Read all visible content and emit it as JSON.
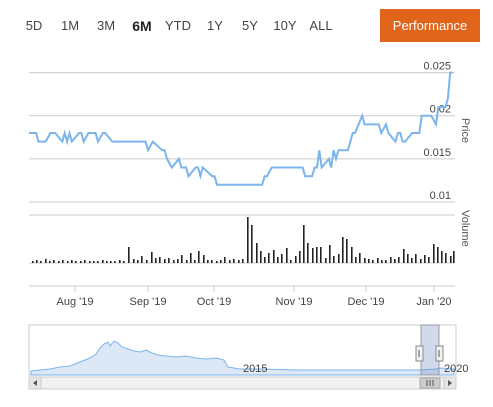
{
  "range_selector": {
    "buttons": [
      {
        "label": "5D",
        "active": false
      },
      {
        "label": "1M",
        "active": false
      },
      {
        "label": "3M",
        "active": false
      },
      {
        "label": "6M",
        "active": true
      },
      {
        "label": "YTD",
        "active": false
      },
      {
        "label": "1Y",
        "active": false
      },
      {
        "label": "5Y",
        "active": false
      },
      {
        "label": "10Y",
        "active": false
      },
      {
        "label": "ALL",
        "active": false
      }
    ]
  },
  "performance_label": "Performance",
  "colors": {
    "accent": "#e0641a",
    "line": "#7cb5ec",
    "volume": "#222222",
    "navigator_fill": "#dce8f5"
  },
  "chart_data": {
    "type": "line",
    "price_axis": {
      "label": "Price",
      "ticks": [
        "0.025",
        "0.02",
        "0.015",
        "0.01"
      ],
      "tick_values": [
        0.025,
        0.02,
        0.015,
        0.01
      ],
      "ylim": [
        0.0085,
        0.0275
      ]
    },
    "volume_axis": {
      "label": "Volume"
    },
    "x_ticks": [
      "Aug '19",
      "Sep '19",
      "Oct '19",
      "Nov '19",
      "Dec '19",
      "Jan '20"
    ],
    "series": [
      {
        "type": "line",
        "x": [
          "2019-07-15",
          "2019-07-18",
          "2019-07-19",
          "2019-07-22",
          "2019-07-24",
          "2019-07-26",
          "2019-07-29",
          "2019-07-30",
          "2019-07-31",
          "2019-08-01",
          "2019-08-02",
          "2019-08-05",
          "2019-08-06",
          "2019-08-07",
          "2019-08-09",
          "2019-08-12",
          "2019-08-13",
          "2019-08-15",
          "2019-08-16",
          "2019-08-19",
          "2019-08-20",
          "2019-08-22",
          "2019-08-26",
          "2019-08-29",
          "2019-09-02",
          "2019-09-03",
          "2019-09-05",
          "2019-09-09",
          "2019-09-10",
          "2019-09-11",
          "2019-09-13",
          "2019-09-16",
          "2019-09-17",
          "2019-09-19",
          "2019-09-20",
          "2019-09-23",
          "2019-09-24",
          "2019-09-25",
          "2019-09-26",
          "2019-09-30",
          "2019-10-01",
          "2019-10-02",
          "2019-10-03",
          "2019-10-07",
          "2019-10-10",
          "2019-10-15",
          "2019-10-18",
          "2019-10-21",
          "2019-10-22",
          "2019-10-23",
          "2019-10-25",
          "2019-10-28",
          "2019-10-29",
          "2019-11-01",
          "2019-11-04",
          "2019-11-05",
          "2019-11-06",
          "2019-11-07",
          "2019-11-08",
          "2019-11-11",
          "2019-11-12",
          "2019-11-13",
          "2019-11-14",
          "2019-11-15",
          "2019-11-18",
          "2019-11-19",
          "2019-11-20",
          "2019-11-21",
          "2019-11-22",
          "2019-11-25",
          "2019-11-26",
          "2019-11-27",
          "2019-11-28",
          "2019-11-29",
          "2019-12-02",
          "2019-12-03",
          "2019-12-05",
          "2019-12-09",
          "2019-12-10",
          "2019-12-12",
          "2019-12-13",
          "2019-12-16",
          "2019-12-17",
          "2019-12-18",
          "2019-12-19",
          "2019-12-20",
          "2019-12-23",
          "2019-12-24",
          "2019-12-26",
          "2019-12-27",
          "2019-12-30",
          "2019-12-31",
          "2020-01-02",
          "2020-01-03",
          "2020-01-06",
          "2020-01-07",
          "2020-01-08",
          "2020-01-09"
        ],
        "y": [
          0.018,
          0.018,
          0.017,
          0.017,
          0.018,
          0.018,
          0.017,
          0.018,
          0.017,
          0.018,
          0.017,
          0.018,
          0.018,
          0.017,
          0.018,
          0.018,
          0.017,
          0.018,
          0.018,
          0.017,
          0.017,
          0.017,
          0.017,
          0.017,
          0.017,
          0.016,
          0.017,
          0.016,
          0.016,
          0.015,
          0.014,
          0.015,
          0.014,
          0.014,
          0.013,
          0.014,
          0.014,
          0.013,
          0.014,
          0.013,
          0.013,
          0.012,
          0.012,
          0.012,
          0.012,
          0.012,
          0.012,
          0.012,
          0.013,
          0.013,
          0.014,
          0.014,
          0.014,
          0.014,
          0.014,
          0.014,
          0.014,
          0.014,
          0.013,
          0.013,
          0.014,
          0.014,
          0.016,
          0.014,
          0.015,
          0.014,
          0.016,
          0.015,
          0.016,
          0.016,
          0.016,
          0.017,
          0.018,
          0.018,
          0.02,
          0.019,
          0.019,
          0.019,
          0.018,
          0.019,
          0.018,
          0.017,
          0.018,
          0.018,
          0.017,
          0.017,
          0.018,
          0.018,
          0.018,
          0.02,
          0.02,
          0.02,
          0.019,
          0.021,
          0.021,
          0.022,
          0.025,
          0.025
        ]
      }
    ],
    "volume": [
      1,
      1,
      1,
      2,
      1,
      1,
      1,
      2,
      1,
      1,
      1,
      1,
      1,
      1,
      2,
      1,
      1,
      1,
      1,
      1,
      1,
      1,
      1,
      1,
      1,
      1,
      1,
      1,
      1,
      1,
      1,
      1,
      1,
      1,
      1,
      1,
      1,
      1,
      1,
      1,
      1,
      1,
      1,
      1,
      3,
      1,
      1,
      1,
      2,
      1,
      1,
      1,
      1,
      4,
      1,
      1,
      3,
      2,
      1,
      1,
      2,
      1,
      1,
      1,
      1,
      1,
      1,
      1,
      1,
      1,
      1,
      1,
      1,
      1,
      1,
      1,
      2,
      1,
      1,
      1,
      1,
      1,
      1,
      1,
      1,
      1,
      1,
      1,
      1,
      1,
      1,
      1,
      1,
      1,
      1,
      1,
      1,
      1,
      1,
      1,
      1,
      1,
      1,
      1,
      1,
      1,
      1,
      1,
      1,
      1,
      1,
      1,
      1,
      1,
      1,
      2,
      1,
      1,
      1,
      1,
      1,
      1,
      1,
      1,
      5,
      2,
      1,
      1,
      1,
      1,
      3,
      1,
      1,
      1,
      1,
      1,
      1,
      1,
      1,
      1,
      2,
      1,
      1,
      1,
      1,
      1,
      1,
      1,
      1,
      1,
      1,
      2,
      1,
      1,
      1,
      1,
      1,
      1,
      1,
      1,
      1,
      1,
      1,
      1,
      1,
      1,
      1,
      1,
      2,
      1,
      3,
      2,
      1,
      1,
      1,
      1,
      1,
      1,
      1,
      1,
      1,
      1,
      1,
      1,
      1,
      1,
      2,
      1,
      1,
      1,
      1,
      1,
      1,
      1,
      1,
      1,
      1,
      1,
      1,
      1,
      1,
      1,
      1,
      1,
      1,
      1,
      1,
      2,
      1,
      1,
      1,
      1,
      1,
      1,
      1,
      1,
      1,
      1,
      1,
      1,
      1,
      1,
      1,
      1,
      1,
      1,
      1,
      1,
      2,
      1,
      2,
      1,
      1,
      1,
      1,
      1,
      1,
      1,
      1,
      1,
      1,
      1,
      1
    ],
    "volume_bars": [
      {
        "x": 32,
        "h": 2
      },
      {
        "x": 36,
        "h": 3
      },
      {
        "x": 40,
        "h": 2
      },
      {
        "x": 45,
        "h": 4
      },
      {
        "x": 49,
        "h": 2
      },
      {
        "x": 53,
        "h": 3
      },
      {
        "x": 58,
        "h": 2
      },
      {
        "x": 62,
        "h": 3
      },
      {
        "x": 67,
        "h": 2
      },
      {
        "x": 71,
        "h": 3
      },
      {
        "x": 75,
        "h": 2
      },
      {
        "x": 80,
        "h": 2
      },
      {
        "x": 84,
        "h": 3
      },
      {
        "x": 89,
        "h": 2
      },
      {
        "x": 93,
        "h": 2
      },
      {
        "x": 97,
        "h": 2
      },
      {
        "x": 102,
        "h": 3
      },
      {
        "x": 106,
        "h": 2
      },
      {
        "x": 110,
        "h": 2
      },
      {
        "x": 114,
        "h": 2
      },
      {
        "x": 119,
        "h": 3
      },
      {
        "x": 123,
        "h": 2
      },
      {
        "x": 128,
        "h": 16
      },
      {
        "x": 133,
        "h": 4
      },
      {
        "x": 137,
        "h": 3
      },
      {
        "x": 141,
        "h": 7
      },
      {
        "x": 146,
        "h": 3
      },
      {
        "x": 151,
        "h": 11
      },
      {
        "x": 155,
        "h": 5
      },
      {
        "x": 159,
        "h": 6
      },
      {
        "x": 164,
        "h": 4
      },
      {
        "x": 168,
        "h": 5
      },
      {
        "x": 173,
        "h": 3
      },
      {
        "x": 177,
        "h": 4
      },
      {
        "x": 181,
        "h": 8
      },
      {
        "x": 186,
        "h": 3
      },
      {
        "x": 190,
        "h": 10
      },
      {
        "x": 194,
        "h": 3
      },
      {
        "x": 198,
        "h": 12
      },
      {
        "x": 203,
        "h": 8
      },
      {
        "x": 207,
        "h": 3
      },
      {
        "x": 211,
        "h": 3
      },
      {
        "x": 216,
        "h": 2
      },
      {
        "x": 220,
        "h": 3
      },
      {
        "x": 224,
        "h": 6
      },
      {
        "x": 229,
        "h": 3
      },
      {
        "x": 233,
        "h": 4
      },
      {
        "x": 238,
        "h": 3
      },
      {
        "x": 242,
        "h": 4
      },
      {
        "x": 247,
        "h": 46
      },
      {
        "x": 251,
        "h": 38
      },
      {
        "x": 256,
        "h": 20
      },
      {
        "x": 260,
        "h": 12
      },
      {
        "x": 264,
        "h": 6
      },
      {
        "x": 268,
        "h": 10
      },
      {
        "x": 273,
        "h": 13
      },
      {
        "x": 277,
        "h": 6
      },
      {
        "x": 281,
        "h": 9
      },
      {
        "x": 286,
        "h": 15
      },
      {
        "x": 290,
        "h": 3
      },
      {
        "x": 295,
        "h": 7
      },
      {
        "x": 299,
        "h": 12
      },
      {
        "x": 303,
        "h": 38
      },
      {
        "x": 307,
        "h": 20
      },
      {
        "x": 312,
        "h": 15
      },
      {
        "x": 316,
        "h": 16
      },
      {
        "x": 320,
        "h": 16
      },
      {
        "x": 325,
        "h": 5
      },
      {
        "x": 329,
        "h": 18
      },
      {
        "x": 333,
        "h": 7
      },
      {
        "x": 338,
        "h": 9
      },
      {
        "x": 342,
        "h": 26
      },
      {
        "x": 346,
        "h": 24
      },
      {
        "x": 351,
        "h": 16
      },
      {
        "x": 355,
        "h": 6
      },
      {
        "x": 359,
        "h": 10
      },
      {
        "x": 364,
        "h": 5
      },
      {
        "x": 368,
        "h": 4
      },
      {
        "x": 372,
        "h": 3
      },
      {
        "x": 377,
        "h": 5
      },
      {
        "x": 381,
        "h": 3
      },
      {
        "x": 385,
        "h": 3
      },
      {
        "x": 390,
        "h": 6
      },
      {
        "x": 394,
        "h": 4
      },
      {
        "x": 398,
        "h": 6
      },
      {
        "x": 403,
        "h": 14
      },
      {
        "x": 407,
        "h": 9
      },
      {
        "x": 411,
        "h": 5
      },
      {
        "x": 415,
        "h": 9
      },
      {
        "x": 420,
        "h": 4
      },
      {
        "x": 424,
        "h": 8
      },
      {
        "x": 428,
        "h": 6
      },
      {
        "x": 433,
        "h": 19
      },
      {
        "x": 437,
        "h": 16
      },
      {
        "x": 441,
        "h": 12
      },
      {
        "x": 445,
        "h": 10
      },
      {
        "x": 450,
        "h": 7
      },
      {
        "x": 453,
        "h": 12
      }
    ],
    "navigator": {
      "labels": [
        "2015",
        "2020"
      ],
      "x": [
        1990,
        2000,
        2005,
        2008,
        2010,
        2015,
        2018,
        2020
      ],
      "y": [
        0.015,
        0.11,
        0.06,
        0.04,
        0.02,
        0.016,
        0.015,
        0.014
      ]
    }
  }
}
